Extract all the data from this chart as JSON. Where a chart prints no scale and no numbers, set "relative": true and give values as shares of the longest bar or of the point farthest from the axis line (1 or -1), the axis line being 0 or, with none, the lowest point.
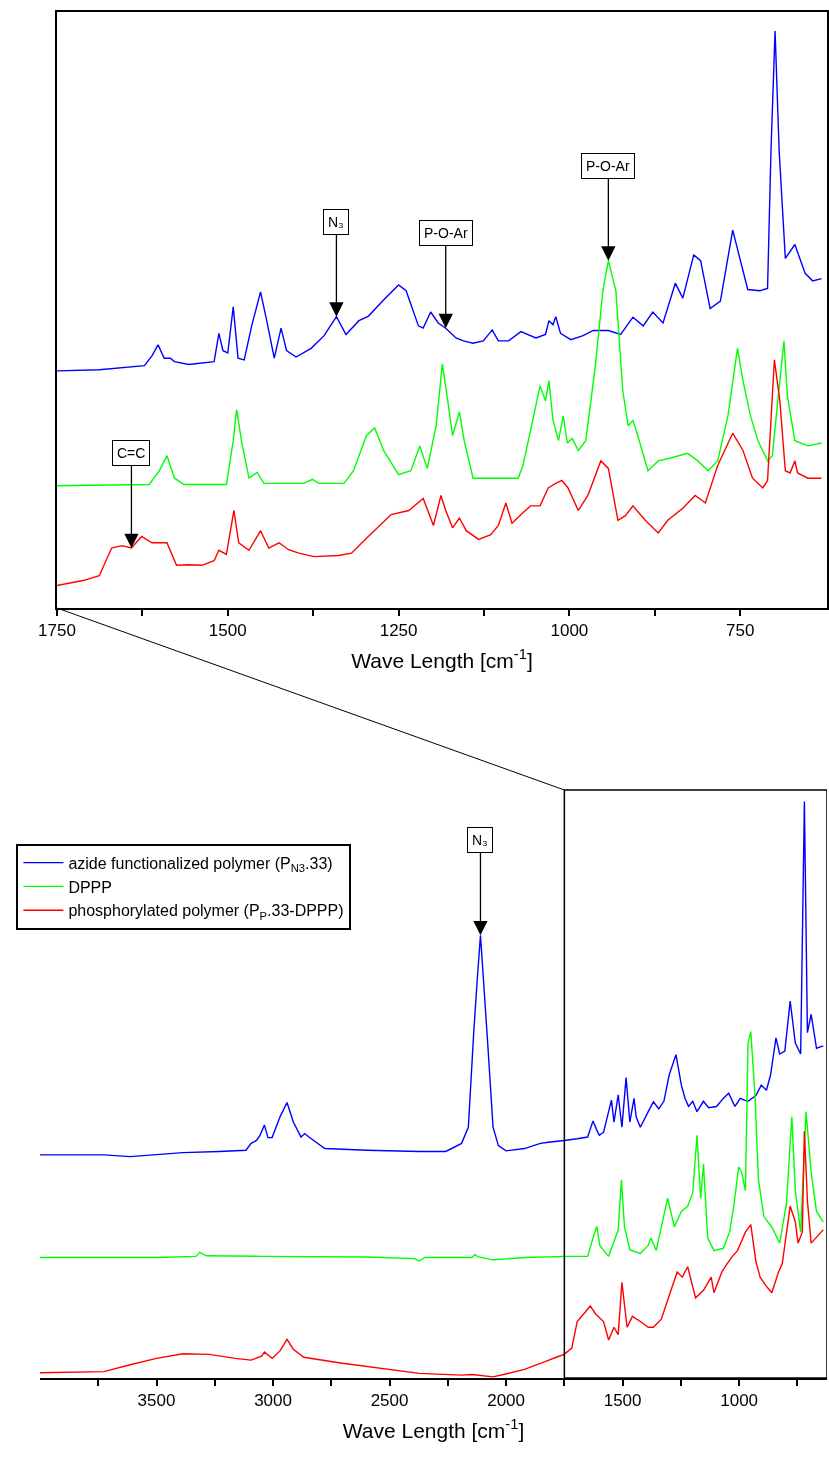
{
  "chart_data": [
    {
      "type": "line",
      "relative": true,
      "xlabel": "Wave Length [cm$^{-1}$]",
      "xlim": [
        1750,
        623
      ],
      "xticks": [
        1750,
        {
          "value": 1625,
          "label": null
        },
        1500,
        {
          "value": 1375,
          "label": null
        },
        1250,
        {
          "value": 1125,
          "label": null
        },
        1000,
        {
          "value": 875,
          "label": null
        },
        750
      ],
      "grid": false,
      "legend": false,
      "marker": "none",
      "line_style": "solid",
      "annotations": [
        {
          "text": "C=C",
          "x": 1641,
          "y": 0.104
        },
        {
          "text": "N₃",
          "x": 1341,
          "y": 0.505
        },
        {
          "text": "P-O-Ar",
          "x": 1181,
          "y": 0.485
        },
        {
          "text": "P-O-Ar",
          "x": 943,
          "y": 0.602
        }
      ],
      "series": [
        {
          "color": "#0000ff",
          "x": [
            1750,
            1688,
            1622,
            1611,
            1602,
            1593,
            1584,
            1578,
            1557,
            1520,
            1513,
            1507,
            1500,
            1492,
            1485,
            1476,
            1465,
            1452,
            1443,
            1432,
            1422,
            1414,
            1400,
            1378,
            1359,
            1341,
            1327,
            1308,
            1294,
            1272,
            1250,
            1239,
            1221,
            1214,
            1203,
            1192,
            1181,
            1166,
            1155,
            1141,
            1126,
            1113,
            1104,
            1089,
            1071,
            1049,
            1035,
            1030,
            1024,
            1020,
            1013,
            998,
            980,
            965,
            943,
            925,
            907,
            892,
            878,
            863,
            845,
            834,
            818,
            808,
            794,
            779,
            761,
            739,
            721,
            710,
            705,
            699,
            693,
            684,
            670,
            655,
            644,
            631
          ],
          "values": [
            0.411,
            0.413,
            0.42,
            0.437,
            0.456,
            0.433,
            0.433,
            0.427,
            0.422,
            0.427,
            0.476,
            0.446,
            0.442,
            0.522,
            0.433,
            0.43,
            0.489,
            0.548,
            0.498,
            0.433,
            0.485,
            0.446,
            0.435,
            0.45,
            0.472,
            0.505,
            0.474,
            0.498,
            0.506,
            0.534,
            0.56,
            0.55,
            0.489,
            0.485,
            0.513,
            0.494,
            0.485,
            0.468,
            0.463,
            0.459,
            0.463,
            0.482,
            0.463,
            0.463,
            0.479,
            0.468,
            0.474,
            0.498,
            0.491,
            0.505,
            0.476,
            0.465,
            0.472,
            0.481,
            0.481,
            0.474,
            0.504,
            0.489,
            0.513,
            0.494,
            0.563,
            0.537,
            0.612,
            0.602,
            0.519,
            0.532,
            0.655,
            0.552,
            0.55,
            0.554,
            0.792,
            1.0,
            0.792,
            0.606,
            0.63,
            0.58,
            0.567,
            0.571
          ]
        },
        {
          "color": "#00ff00",
          "x": [
            1750,
            1615,
            1600,
            1589,
            1578,
            1564,
            1502,
            1492,
            1487,
            1480,
            1469,
            1457,
            1447,
            1389,
            1376,
            1367,
            1330,
            1316,
            1297,
            1285,
            1272,
            1250,
            1232,
            1219,
            1208,
            1195,
            1186,
            1178,
            1171,
            1161,
            1154,
            1141,
            1075,
            1068,
            1057,
            1043,
            1035,
            1030,
            1024,
            1016,
            1009,
            1003,
            996,
            987,
            976,
            962,
            951,
            943,
            932,
            922,
            914,
            907,
            900,
            885,
            870,
            852,
            827,
            812,
            797,
            783,
            768,
            754,
            746,
            735,
            724,
            710,
            703,
            695,
            686,
            681,
            670,
            651,
            631
          ],
          "values": [
            0.212,
            0.214,
            0.238,
            0.264,
            0.225,
            0.214,
            0.214,
            0.29,
            0.344,
            0.29,
            0.225,
            0.235,
            0.216,
            0.216,
            0.223,
            0.216,
            0.216,
            0.238,
            0.299,
            0.312,
            0.273,
            0.231,
            0.238,
            0.281,
            0.242,
            0.316,
            0.423,
            0.359,
            0.299,
            0.34,
            0.29,
            0.225,
            0.225,
            0.247,
            0.307,
            0.385,
            0.359,
            0.394,
            0.325,
            0.29,
            0.333,
            0.286,
            0.294,
            0.273,
            0.29,
            0.42,
            0.55,
            0.602,
            0.55,
            0.377,
            0.316,
            0.325,
            0.299,
            0.238,
            0.255,
            0.26,
            0.268,
            0.255,
            0.238,
            0.255,
            0.333,
            0.45,
            0.394,
            0.333,
            0.29,
            0.255,
            0.264,
            0.359,
            0.463,
            0.368,
            0.29,
            0.281,
            0.286
          ]
        },
        {
          "color": "#ff0000",
          "x": [
            1750,
            1710,
            1688,
            1670,
            1655,
            1641,
            1626,
            1611,
            1589,
            1575,
            1557,
            1538,
            1520,
            1513,
            1502,
            1491,
            1484,
            1469,
            1452,
            1440,
            1425,
            1411,
            1396,
            1374,
            1338,
            1319,
            1297,
            1261,
            1235,
            1214,
            1199,
            1188,
            1181,
            1171,
            1161,
            1151,
            1133,
            1115,
            1104,
            1093,
            1084,
            1068,
            1057,
            1043,
            1031,
            1020,
            1011,
            1002,
            987,
            973,
            954,
            943,
            929,
            918,
            907,
            889,
            870,
            856,
            834,
            816,
            801,
            783,
            761,
            746,
            732,
            717,
            710,
            700,
            692,
            684,
            677,
            670,
            666,
            651,
            631
          ],
          "values": [
            0.039,
            0.048,
            0.056,
            0.104,
            0.108,
            0.104,
            0.124,
            0.113,
            0.113,
            0.074,
            0.075,
            0.074,
            0.082,
            0.1,
            0.093,
            0.169,
            0.113,
            0.1,
            0.134,
            0.104,
            0.113,
            0.101,
            0.095,
            0.089,
            0.091,
            0.095,
            0.121,
            0.162,
            0.169,
            0.19,
            0.143,
            0.195,
            0.169,
            0.139,
            0.156,
            0.134,
            0.119,
            0.127,
            0.143,
            0.182,
            0.147,
            0.165,
            0.177,
            0.177,
            0.208,
            0.216,
            0.221,
            0.208,
            0.169,
            0.195,
            0.255,
            0.242,
            0.152,
            0.16,
            0.177,
            0.152,
            0.13,
            0.152,
            0.173,
            0.195,
            0.182,
            0.247,
            0.303,
            0.273,
            0.225,
            0.208,
            0.221,
            0.43,
            0.359,
            0.238,
            0.234,
            0.255,
            0.234,
            0.225,
            0.225
          ]
        }
      ]
    },
    {
      "type": "line",
      "relative": true,
      "xlabel": "Wave Length [cm$^{-1}$]",
      "xlim": [
        4000,
        623
      ],
      "xticks": [
        {
          "value": 3750,
          "label": null
        },
        3500,
        {
          "value": 3250,
          "label": null
        },
        3000,
        {
          "value": 2750,
          "label": null
        },
        2500,
        {
          "value": 2250,
          "label": null
        },
        2000,
        {
          "value": 1750,
          "label": null
        },
        1500,
        {
          "value": 1250,
          "label": null
        },
        1000,
        {
          "value": 750,
          "label": null
        }
      ],
      "grid": false,
      "legend": "top left",
      "marker": "none",
      "line_style": "solid",
      "annotations": [
        {
          "text": "N₃",
          "x": 2110,
          "y": 0.768
        }
      ],
      "series": [
        {
          "name": "azide functionalized polymer (P$_{N3}$.33)",
          "color": "#0000ff",
          "x": [
            4000,
            3726,
            3613,
            3387,
            3229,
            3116,
            3094,
            3071,
            3056,
            3037,
            3022,
            3004,
            2970,
            2940,
            2913,
            2880,
            2864,
            2846,
            2778,
            2597,
            2372,
            2259,
            2191,
            2162,
            2139,
            2124,
            2110,
            2097,
            2079,
            2056,
            2033,
            2000,
            1921,
            1853,
            1819,
            1751,
            1695,
            1650,
            1627,
            1611,
            1600,
            1582,
            1548,
            1537,
            1519,
            1503,
            1485,
            1469,
            1451,
            1442,
            1424,
            1390,
            1368,
            1345,
            1323,
            1300,
            1271,
            1248,
            1232,
            1217,
            1199,
            1181,
            1153,
            1131,
            1097,
            1068,
            1045,
            1018,
            995,
            977,
            962,
            928,
            905,
            883,
            865,
            842,
            826,
            804,
            781,
            759,
            736,
            720,
            707,
            691,
            668,
            639
          ],
          "values": [
            0.387,
            0.387,
            0.384,
            0.391,
            0.393,
            0.395,
            0.407,
            0.412,
            0.421,
            0.439,
            0.417,
            0.417,
            0.453,
            0.478,
            0.444,
            0.418,
            0.424,
            0.418,
            0.398,
            0.395,
            0.393,
            0.393,
            0.407,
            0.435,
            0.599,
            0.69,
            0.768,
            0.69,
            0.581,
            0.435,
            0.403,
            0.394,
            0.398,
            0.407,
            0.409,
            0.412,
            0.415,
            0.418,
            0.446,
            0.43,
            0.421,
            0.426,
            0.482,
            0.444,
            0.491,
            0.435,
            0.521,
            0.444,
            0.485,
            0.453,
            0.435,
            0.462,
            0.479,
            0.467,
            0.48,
            0.526,
            0.561,
            0.508,
            0.485,
            0.471,
            0.48,
            0.462,
            0.48,
            0.469,
            0.471,
            0.485,
            0.494,
            0.471,
            0.485,
            0.482,
            0.48,
            0.49,
            0.508,
            0.499,
            0.526,
            0.59,
            0.562,
            0.567,
            0.654,
            0.581,
            0.562,
            1.0,
            0.599,
            0.631,
            0.572,
            0.576
          ]
        },
        {
          "name": "DPPP",
          "color": "#00ff00",
          "x": [
            4000,
            3500,
            3331,
            3315,
            3286,
            3049,
            2597,
            2394,
            2372,
            2349,
            2146,
            2135,
            2119,
            2056,
            1921,
            1740,
            1650,
            1627,
            1611,
            1598,
            1560,
            1519,
            1505,
            1492,
            1469,
            1424,
            1390,
            1379,
            1356,
            1329,
            1307,
            1278,
            1248,
            1221,
            1199,
            1181,
            1165,
            1153,
            1135,
            1108,
            1068,
            1041,
            1023,
            1002,
            989,
            973,
            962,
            950,
            932,
            917,
            894,
            860,
            826,
            797,
            774,
            759,
            736,
            713,
            691,
            668,
            639
          ],
          "values": [
            0.209,
            0.209,
            0.211,
            0.218,
            0.212,
            0.211,
            0.21,
            0.207,
            0.203,
            0.209,
            0.209,
            0.214,
            0.21,
            0.205,
            0.209,
            0.211,
            0.211,
            0.243,
            0.263,
            0.23,
            0.211,
            0.257,
            0.344,
            0.262,
            0.222,
            0.216,
            0.23,
            0.243,
            0.221,
            0.271,
            0.312,
            0.262,
            0.289,
            0.298,
            0.321,
            0.421,
            0.312,
            0.371,
            0.243,
            0.221,
            0.225,
            0.253,
            0.298,
            0.366,
            0.357,
            0.325,
            0.581,
            0.601,
            0.49,
            0.344,
            0.28,
            0.262,
            0.234,
            0.303,
            0.453,
            0.325,
            0.253,
            0.462,
            0.357,
            0.289,
            0.271
          ]
        },
        {
          "name": "phosphorylated polymer (P$_{P}$.33-DPPP)",
          "color": "#ff0000",
          "x": [
            4000,
            3726,
            3613,
            3500,
            3387,
            3274,
            3162,
            3094,
            3049,
            3037,
            3004,
            2970,
            2940,
            2913,
            2868,
            2710,
            2372,
            2191,
            2146,
            2056,
            2011,
            1921,
            1830,
            1785,
            1751,
            1718,
            1695,
            1661,
            1639,
            1616,
            1582,
            1560,
            1537,
            1519,
            1503,
            1481,
            1458,
            1424,
            1390,
            1368,
            1334,
            1300,
            1266,
            1244,
            1221,
            1187,
            1153,
            1120,
            1108,
            1074,
            1052,
            1029,
            1007,
            973,
            950,
            928,
            910,
            887,
            860,
            831,
            815,
            781,
            759,
            747,
            729,
            720,
            707,
            691,
            639
          ],
          "values": [
            0.009,
            0.011,
            0.023,
            0.034,
            0.042,
            0.041,
            0.034,
            0.031,
            0.038,
            0.045,
            0.034,
            0.047,
            0.067,
            0.05,
            0.036,
            0.026,
            0.008,
            0.005,
            0.006,
            0.002,
            0.006,
            0.015,
            0.029,
            0.036,
            0.041,
            0.052,
            0.098,
            0.114,
            0.125,
            0.111,
            0.098,
            0.066,
            0.088,
            0.075,
            0.166,
            0.088,
            0.107,
            0.098,
            0.088,
            0.088,
            0.102,
            0.143,
            0.184,
            0.175,
            0.193,
            0.139,
            0.152,
            0.175,
            0.148,
            0.184,
            0.198,
            0.211,
            0.221,
            0.253,
            0.266,
            0.202,
            0.175,
            0.161,
            0.148,
            0.184,
            0.198,
            0.298,
            0.271,
            0.234,
            0.253,
            0.428,
            0.307,
            0.234,
            0.257
          ]
        }
      ]
    }
  ]
}
